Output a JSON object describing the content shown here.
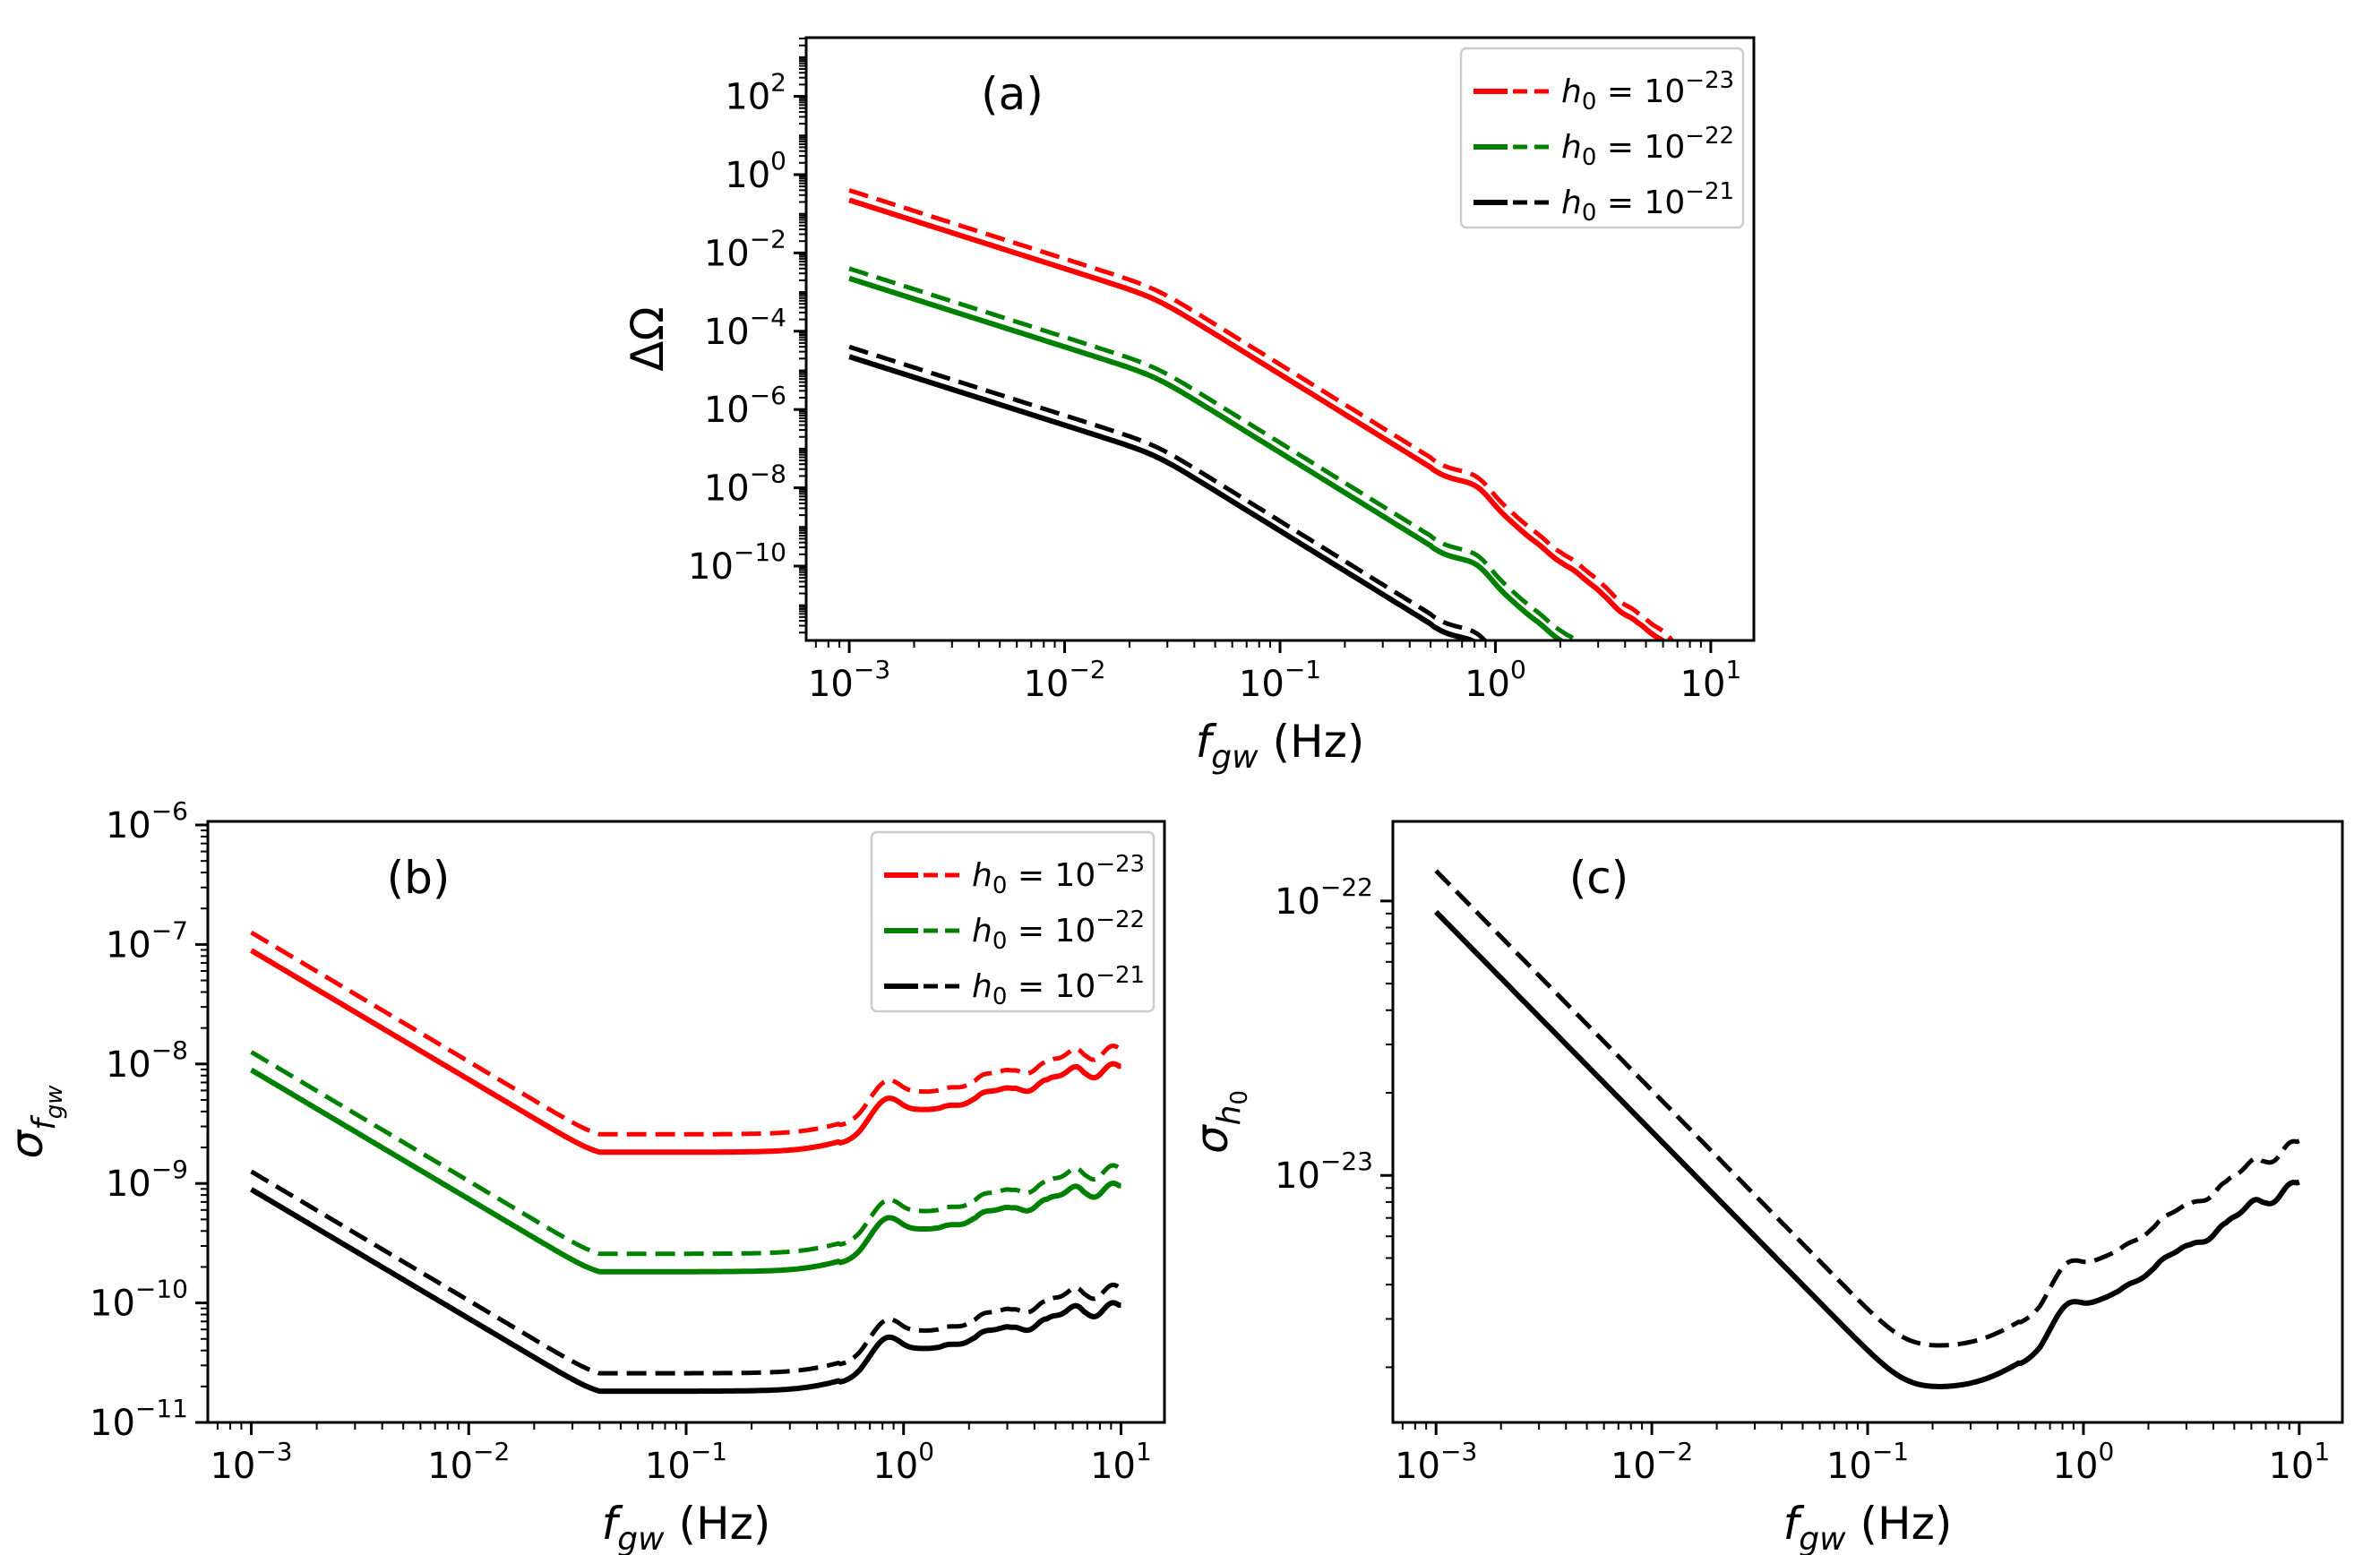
{
  "chart_data": [
    {
      "id": "a",
      "type": "line",
      "panel_label": "(a)",
      "xlabel_main": "f",
      "xlabel_sub": "gw",
      "xlabel_unit": " (Hz)",
      "ylabel_main": "ΔΩ",
      "ylabel_sub": "",
      "xscale": "log",
      "yscale": "log",
      "xlim_exp": [
        -3.2,
        1.2
      ],
      "ylim_exp": [
        -11.9,
        3.5
      ],
      "xticks_exp": [
        -3,
        -2,
        -1,
        0,
        1
      ],
      "yticks_exp": [
        2,
        0,
        -2,
        -4,
        -6,
        -8,
        -10
      ],
      "shape": "omega",
      "series": [
        {
          "name": "h0 = 10^-23",
          "color": "#ff0000",
          "solid_offset": 0,
          "dashed_delta": 0.25
        },
        {
          "name": "h0 = 10^-22",
          "color": "#008000",
          "solid_offset": -2,
          "dashed_delta": 0.25
        },
        {
          "name": "h0 = 10^-21",
          "color": "#000000",
          "solid_offset": -4,
          "dashed_delta": 0.25
        }
      ],
      "legend": {
        "location": "upper right",
        "entries": [
          {
            "base": "h",
            "sub": "0",
            "eq": " = 10",
            "exp": "−23",
            "color": "#ff0000"
          },
          {
            "base": "h",
            "sub": "0",
            "eq": " = 10",
            "exp": "−22",
            "color": "#008000"
          },
          {
            "base": "h",
            "sub": "0",
            "eq": " = 10",
            "exp": "−21",
            "color": "#000000"
          }
        ]
      }
    },
    {
      "id": "b",
      "type": "line",
      "panel_label": "(b)",
      "xlabel_main": "f",
      "xlabel_sub": "gw",
      "xlabel_unit": " (Hz)",
      "ylabel_main": "σ",
      "ylabel_sub": "f_gw",
      "xscale": "log",
      "yscale": "log",
      "xlim_exp": [
        -3.2,
        1.2
      ],
      "ylim_exp": [
        -11.0,
        -5.97
      ],
      "xticks_exp": [
        -3,
        -2,
        -1,
        0,
        1
      ],
      "yticks_exp": [
        -6,
        -7,
        -8,
        -9,
        -10,
        -11
      ],
      "shape": "sigma_f",
      "series": [
        {
          "name": "h0 = 10^-23",
          "color": "#ff0000",
          "solid_offset": 0,
          "dashed_delta": 0.15
        },
        {
          "name": "h0 = 10^-22",
          "color": "#008000",
          "solid_offset": -1,
          "dashed_delta": 0.15
        },
        {
          "name": "h0 = 10^-21",
          "color": "#000000",
          "solid_offset": -2,
          "dashed_delta": 0.15
        }
      ],
      "legend": {
        "location": "upper right",
        "entries": [
          {
            "base": "h",
            "sub": "0",
            "eq": " = 10",
            "exp": "−23",
            "color": "#ff0000"
          },
          {
            "base": "h",
            "sub": "0",
            "eq": " = 10",
            "exp": "−22",
            "color": "#008000"
          },
          {
            "base": "h",
            "sub": "0",
            "eq": " = 10",
            "exp": "−21",
            "color": "#000000"
          }
        ]
      }
    },
    {
      "id": "c",
      "type": "line",
      "panel_label": "(c)",
      "xlabel_main": "f",
      "xlabel_sub": "gw",
      "xlabel_unit": " (Hz)",
      "ylabel_main": "σ",
      "ylabel_sub": "h0",
      "xscale": "log",
      "yscale": "log",
      "xlim_exp": [
        -3.2,
        1.2
      ],
      "ylim_exp": [
        -23.9,
        -21.71
      ],
      "xticks_exp": [
        -3,
        -2,
        -1,
        0,
        1
      ],
      "yticks_exp": [
        -22,
        -23
      ],
      "shape": "sigma_h",
      "series": [
        {
          "name": "solid",
          "color": "#000000",
          "solid_offset": 0,
          "dashed_delta": 0.15
        }
      ],
      "legend": null
    }
  ]
}
